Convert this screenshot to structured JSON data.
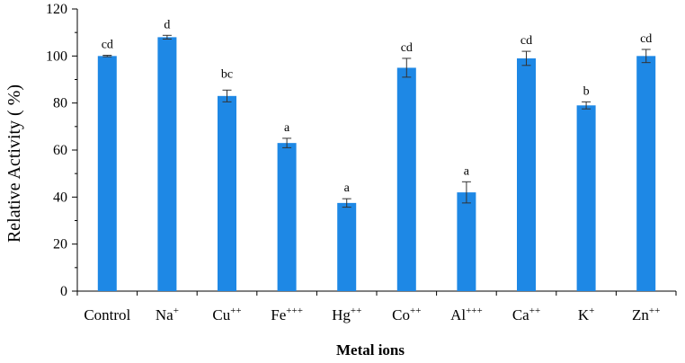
{
  "chart_data": {
    "type": "bar",
    "categories": [
      {
        "base": "Control",
        "sup": ""
      },
      {
        "base": "Na",
        "sup": "+"
      },
      {
        "base": "Cu",
        "sup": "++"
      },
      {
        "base": "Fe",
        "sup": "+++"
      },
      {
        "base": "Hg",
        "sup": "++"
      },
      {
        "base": "Co",
        "sup": "++"
      },
      {
        "base": "Al",
        "sup": "+++"
      },
      {
        "base": "Ca",
        "sup": "++"
      },
      {
        "base": "K",
        "sup": "+"
      },
      {
        "base": "Zn",
        "sup": "++"
      }
    ],
    "values": [
      100,
      108,
      83,
      63,
      37.5,
      95,
      42,
      99,
      79,
      100
    ],
    "errors": [
      0.3,
      0.8,
      2.5,
      2.0,
      1.8,
      4.0,
      4.5,
      3.0,
      1.5,
      2.8
    ],
    "significance": [
      "cd",
      "d",
      "bc",
      "a",
      "a",
      "cd",
      "a",
      "cd",
      "b",
      "cd"
    ],
    "xlabel": "Metal ions",
    "ylabel": "Relative Activity ( %)",
    "ylim": [
      0,
      120
    ],
    "yticks": [
      0,
      20,
      40,
      60,
      80,
      100,
      120
    ],
    "bar_color": "#1E88E5",
    "grid": false
  }
}
